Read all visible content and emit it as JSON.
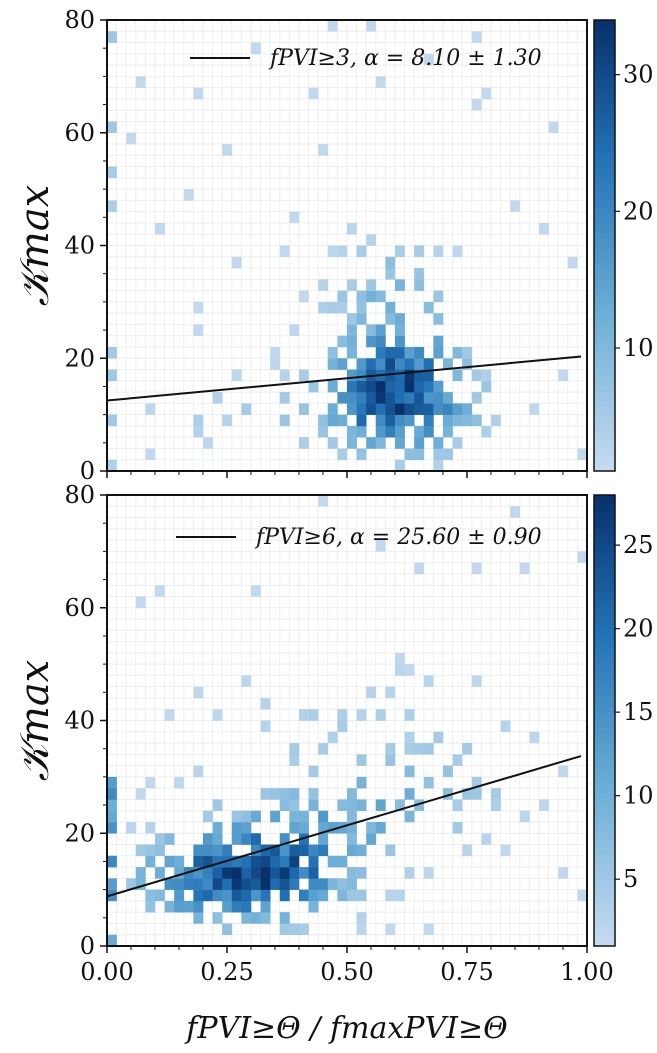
{
  "chart_data": [
    {
      "type": "heatmap",
      "panel": "top",
      "ylabel": "𝒦max",
      "xlim": [
        0,
        1.0
      ],
      "ylim": [
        0,
        80
      ],
      "xticks": [
        "0.00",
        "0.25",
        "0.50",
        "0.75",
        "1.00"
      ],
      "yticks": [
        "0",
        "20",
        "40",
        "60",
        "80"
      ],
      "colorbar": {
        "ticks": [
          "10",
          "20",
          "30"
        ],
        "min": 1,
        "max": 34
      },
      "legend": {
        "label": "fPVI≥3, α = 8.10 ± 1.30",
        "placement": "top-right"
      },
      "fit_line": {
        "x": [
          0.0,
          1.0
        ],
        "y": [
          12.5,
          20.4
        ]
      },
      "density_hotspot": {
        "x": 0.6,
        "y": 13
      }
    },
    {
      "type": "heatmap",
      "panel": "bottom",
      "ylabel": "𝒦max",
      "xlabel": "fPVI≥Θ / fmaxPVI≥Θ",
      "xlim": [
        0,
        1.0
      ],
      "ylim": [
        0,
        80
      ],
      "xticks": [
        "0.00",
        "0.25",
        "0.50",
        "0.75",
        "1.00"
      ],
      "yticks": [
        "0",
        "20",
        "40",
        "60",
        "80"
      ],
      "colorbar": {
        "ticks": [
          "5",
          "10",
          "15",
          "20",
          "25"
        ],
        "min": 1,
        "max": 28
      },
      "legend": {
        "label": "fPVI≥6, α = 25.60 ± 0.90",
        "placement": "top-right"
      },
      "fit_line": {
        "x": [
          0.0,
          1.0
        ],
        "y": [
          8.8,
          34.0
        ]
      },
      "density_hotspot": {
        "x": 0.3,
        "y": 12
      }
    }
  ],
  "colors": {
    "low": "#c6dbef",
    "mid": "#6baed6",
    "high": "#08306b",
    "line": "#111111"
  }
}
